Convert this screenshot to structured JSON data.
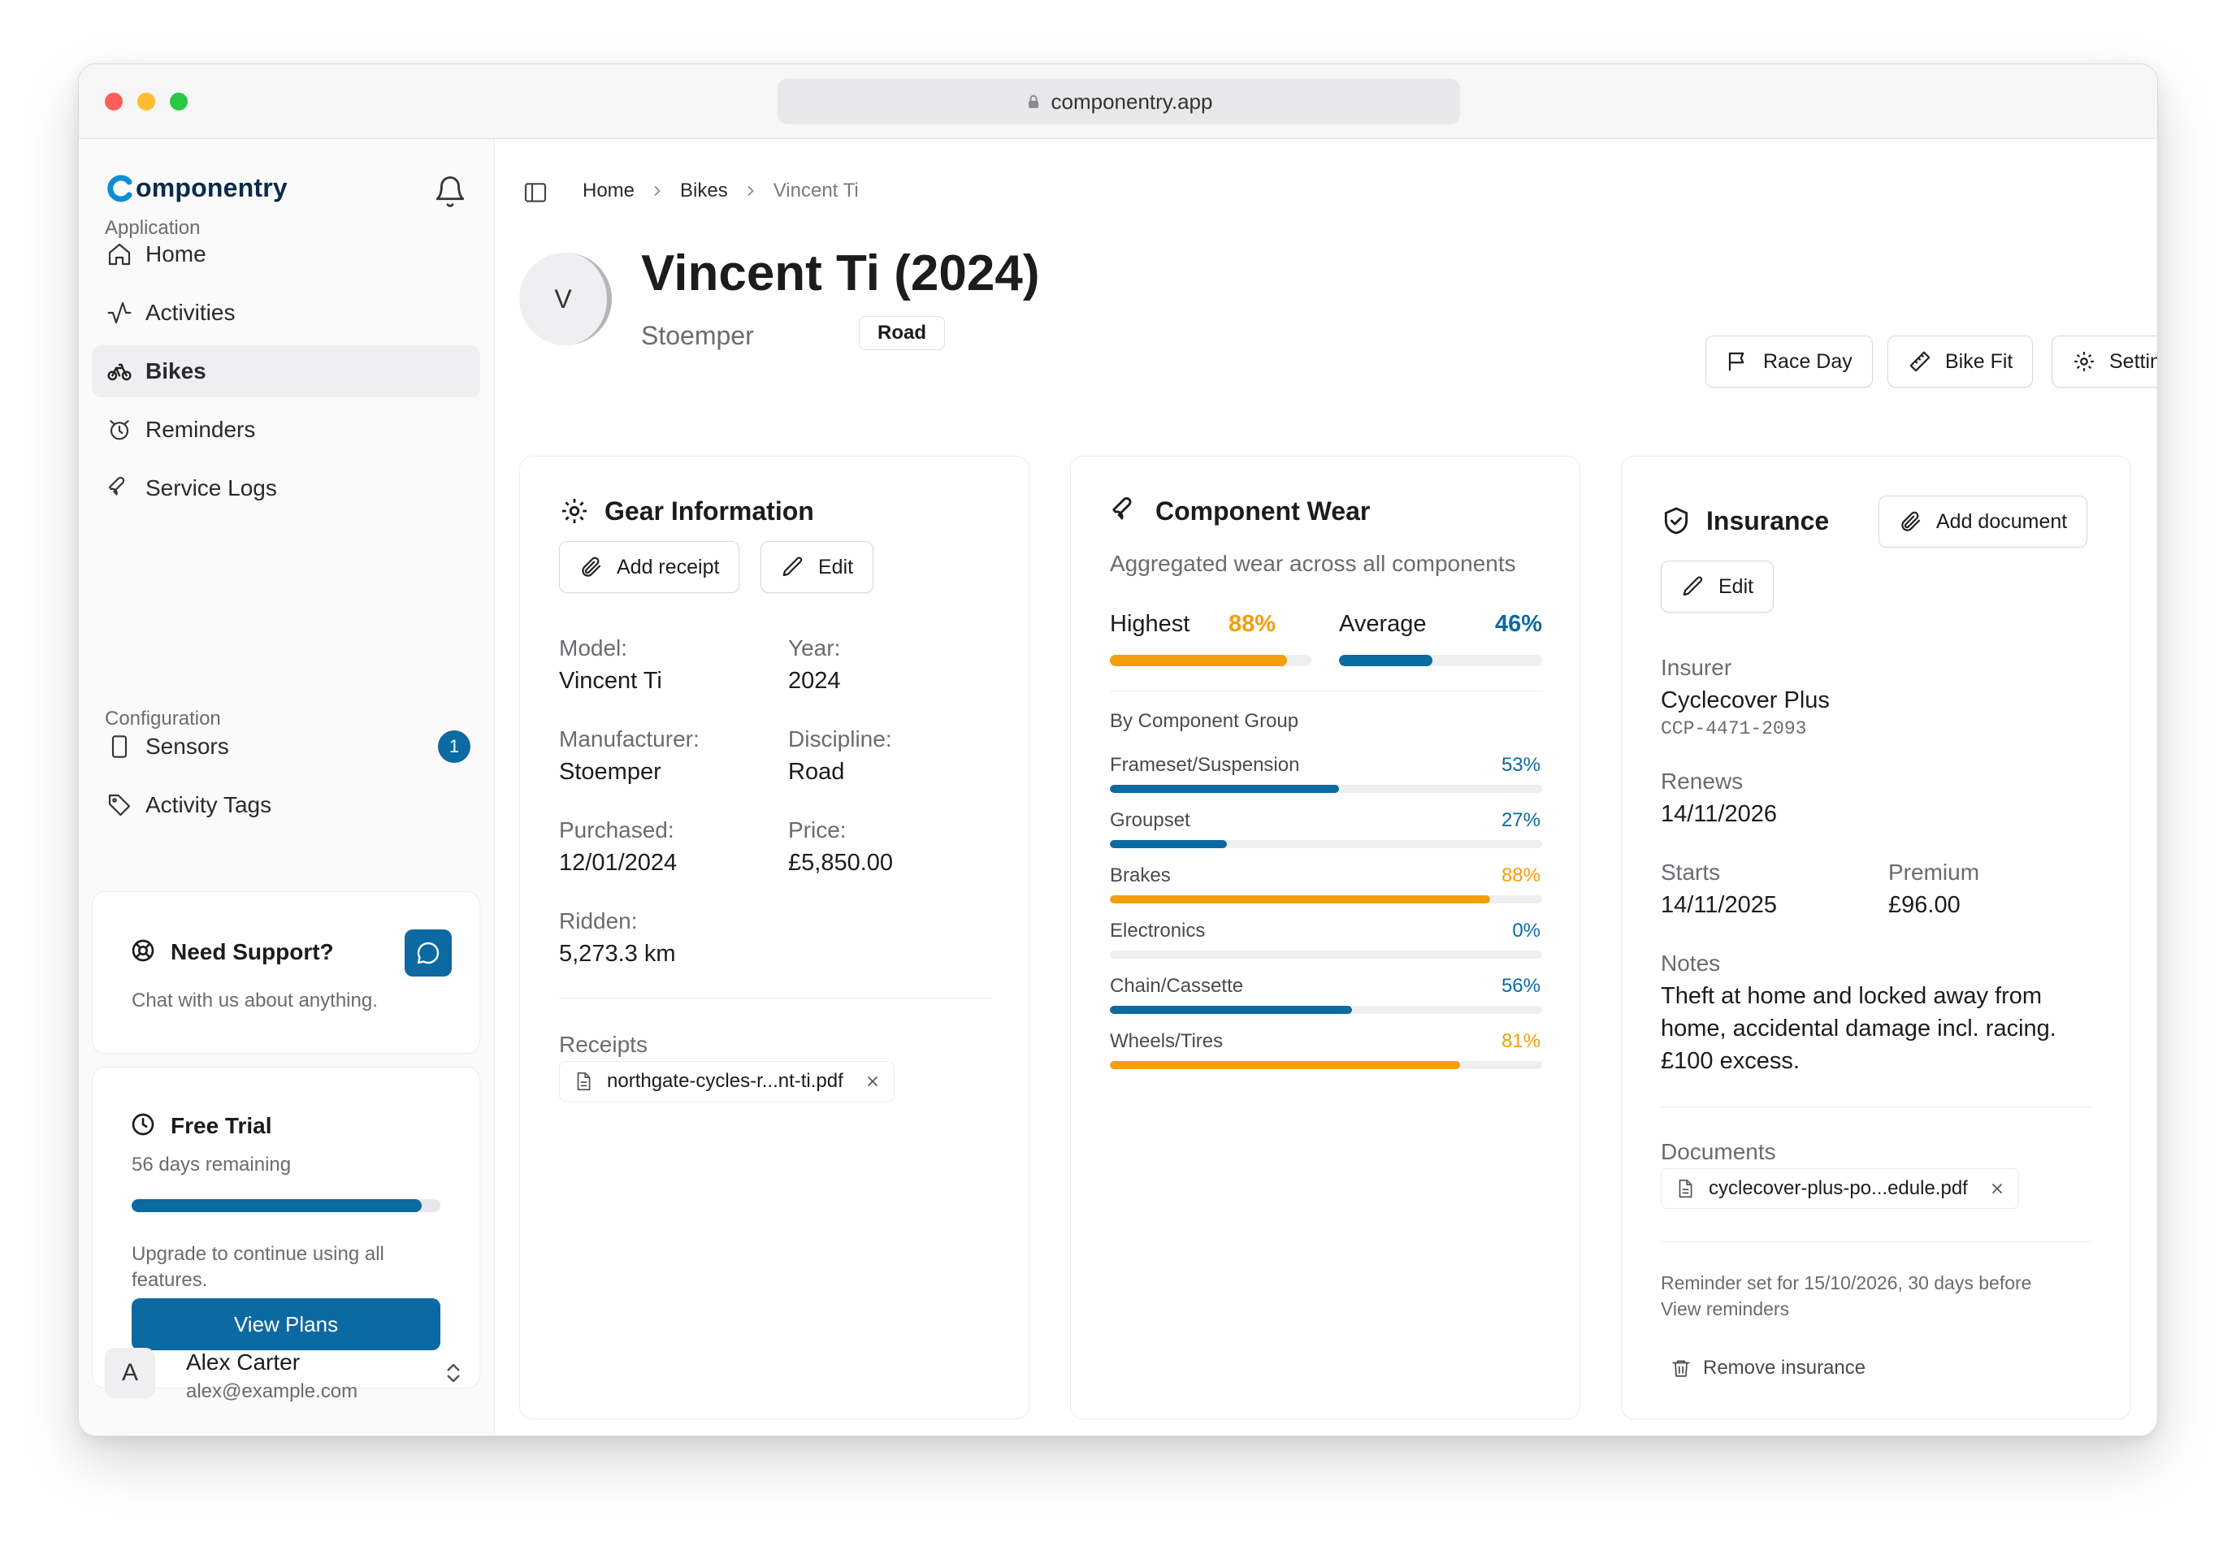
{
  "browser": {
    "url": "componentry.app"
  },
  "brand": {
    "name": "omponentry"
  },
  "sidebar": {
    "application_label": "Application",
    "configuration_label": "Configuration",
    "items": [
      {
        "label": "Home",
        "icon": "home-icon"
      },
      {
        "label": "Activities",
        "icon": "activity-icon"
      },
      {
        "label": "Bikes",
        "icon": "bike-icon"
      },
      {
        "label": "Reminders",
        "icon": "alarm-icon"
      },
      {
        "label": "Service Logs",
        "icon": "wrench-icon"
      }
    ],
    "config_items": [
      {
        "label": "Sensors",
        "icon": "sensor-icon",
        "badge": "1"
      },
      {
        "label": "Activity Tags",
        "icon": "tag-icon"
      }
    ],
    "support": {
      "title": "Need Support?",
      "subtitle": "Chat with us about anything."
    },
    "trial": {
      "title": "Free Trial",
      "remaining": "56 days remaining",
      "progress": 0.94,
      "upgrade_text_1": "Upgrade to continue using all",
      "upgrade_text_2": "features.",
      "button": "View Plans"
    },
    "user": {
      "initial": "A",
      "name": "Alex Carter",
      "email": "alex@example.com"
    }
  },
  "breadcrumb": {
    "home": "Home",
    "bikes": "Bikes",
    "current": "Vincent Ti"
  },
  "bike": {
    "initial": "V",
    "title": "Vincent Ti (2024)",
    "manufacturer": "Stoemper",
    "discipline_tag": "Road"
  },
  "actions": {
    "race_day": "Race Day",
    "bike_fit": "Bike Fit",
    "settings": "Settings"
  },
  "gear": {
    "title": "Gear Information",
    "add_receipt": "Add receipt",
    "edit": "Edit",
    "fields": {
      "model_label": "Model:",
      "model": "Vincent Ti",
      "year_label": "Year:",
      "year": "2024",
      "manufacturer_label": "Manufacturer:",
      "manufacturer": "Stoemper",
      "discipline_label": "Discipline:",
      "discipline": "Road",
      "purchased_label": "Purchased:",
      "purchased": "12/01/2024",
      "price_label": "Price:",
      "price": "£5,850.00",
      "ridden_label": "Ridden:",
      "ridden": "5,273.3 km"
    },
    "receipts_label": "Receipts",
    "receipt_file": "northgate-cycles-r...nt-ti.pdf"
  },
  "wear": {
    "title": "Component Wear",
    "subtitle": "Aggregated wear across all components",
    "highest_label": "Highest",
    "highest_pct": "88%",
    "highest_value": 0.88,
    "average_label": "Average",
    "average_pct": "46%",
    "average_value": 0.46,
    "group_title": "By Component Group",
    "components": [
      {
        "label": "Frameset/Suspension",
        "pct": "53%",
        "value": 0.53,
        "color": "#0b6aa2"
      },
      {
        "label": "Groupset",
        "pct": "27%",
        "value": 0.27,
        "color": "#0b6aa2"
      },
      {
        "label": "Brakes",
        "pct": "88%",
        "value": 0.88,
        "color": "#f59e0b"
      },
      {
        "label": "Electronics",
        "pct": "0%",
        "value": 0.0,
        "color": "#0b6aa2"
      },
      {
        "label": "Chain/Cassette",
        "pct": "56%",
        "value": 0.56,
        "color": "#0b6aa2"
      },
      {
        "label": "Wheels/Tires",
        "pct": "81%",
        "value": 0.81,
        "color": "#f59e0b"
      }
    ],
    "colors": {
      "high": "#f59e0b",
      "normal": "#0b6aa2"
    }
  },
  "insurance": {
    "title": "Insurance",
    "add_document": "Add document",
    "edit": "Edit",
    "insurer_label": "Insurer",
    "insurer": "Cyclecover Plus",
    "policy": "CCP-4471-2093",
    "renews_label": "Renews",
    "renews": "14/11/2026",
    "starts_label": "Starts",
    "starts": "14/11/2025",
    "premium_label": "Premium",
    "premium": "£96.00",
    "notes_label": "Notes",
    "notes_1": "Theft at home and locked away from",
    "notes_2": "home, accidental damage incl. racing.",
    "notes_3": "£100 excess.",
    "documents_label": "Documents",
    "document_file": "cyclecover-plus-po...edule.pdf",
    "reminder_1": "Reminder set for 15/10/2026, 30 days before",
    "reminder_2": "View reminders",
    "remove": "Remove insurance"
  }
}
